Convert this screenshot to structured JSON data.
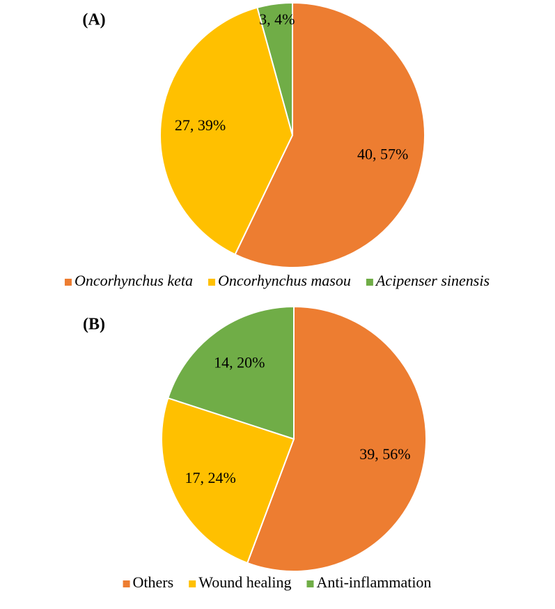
{
  "chart_data": [
    {
      "type": "pie",
      "title": "(A)",
      "categories": [
        "Oncorhynchus keta",
        "Oncorhynchus masou",
        "Acipenser sinensis"
      ],
      "values": [
        40,
        27,
        3
      ],
      "value_labels": [
        "40, 57%",
        "27, 39%",
        "3, 4%"
      ],
      "colors": [
        "#ED7D31",
        "#FFC000",
        "#70AD47"
      ]
    },
    {
      "type": "pie",
      "title": "(B)",
      "categories": [
        "Others",
        "Wound healing",
        "Anti-inflammation"
      ],
      "values": [
        39,
        17,
        14
      ],
      "value_labels": [
        "39, 56%",
        "17, 24%",
        "14, 20%"
      ],
      "colors": [
        "#ED7D31",
        "#FFC000",
        "#70AD47"
      ]
    }
  ]
}
